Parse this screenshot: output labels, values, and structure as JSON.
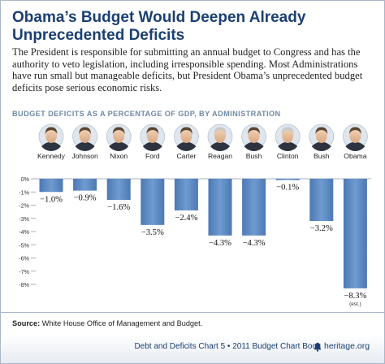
{
  "header": {
    "title": "Obama’s Budget Would Deepen Already Unprecedented Deficits",
    "intro": "The President is responsible for submitting an annual budget to Congress and has the authority to veto legislation, including irresponsible spending. Most Administrations have run small but manageable deficits, but President Obama’s unprecedented budget deficits pose serious economic risks."
  },
  "chart_data": {
    "type": "bar",
    "title": "BUDGET DEFICITS AS A PERCENTAGE OF GDP, BY ADMINISTRATION",
    "categories": [
      "Kennedy",
      "Johnson",
      "Nixon",
      "Ford",
      "Carter",
      "Reagan",
      "Bush",
      "Clinton",
      "Bush",
      "Obama"
    ],
    "values": [
      -1.0,
      -0.9,
      -1.6,
      -3.5,
      -2.4,
      -4.3,
      -4.3,
      -0.1,
      -3.2,
      -8.3
    ],
    "data_labels": [
      "−1.0%",
      "−0.9%",
      "−1.6%",
      "−3.5%",
      "−2.4%",
      "−4.3%",
      "−4.3%",
      "−0.1%",
      "−3.2%",
      "−8.3%"
    ],
    "annotations": [
      "",
      "",
      "",
      "",
      "",
      "",
      "",
      "",
      "",
      "(est.)"
    ],
    "y_ticks": [
      0,
      -1,
      -2,
      -3,
      -4,
      -5,
      -6,
      -7,
      -8
    ],
    "y_tick_labels": [
      "0%",
      "-1%",
      "-2%",
      "-3%",
      "-4%",
      "-5%",
      "-6%",
      "-7%",
      "-8%"
    ],
    "ylim": [
      -8.6,
      0
    ],
    "xlabel": "",
    "ylabel": "",
    "grid": false,
    "bar_color": "#5b87c1",
    "portraits": true
  },
  "source": {
    "label": "Source:",
    "text": "White House Office of Management and Budget."
  },
  "footer": {
    "text": "Debt and Deficits Chart 5 • 2011 Budget Chart Book",
    "logo_icon": "bell-icon",
    "site": "heritage.org"
  },
  "colors": {
    "title": "#1b3f73",
    "bar": "#5b87c1",
    "chart_title": "#6f8aa5"
  }
}
